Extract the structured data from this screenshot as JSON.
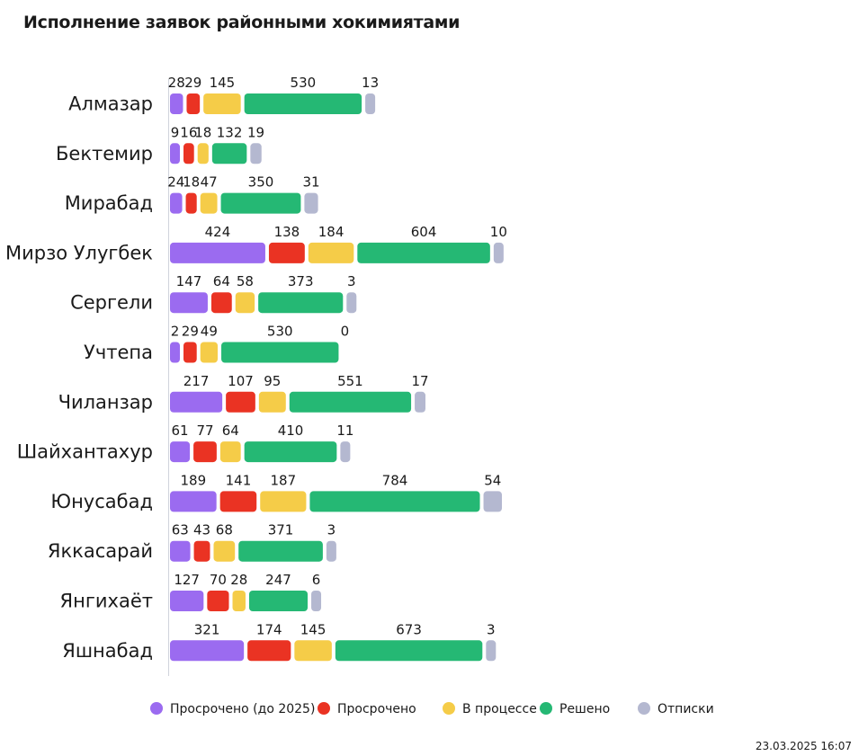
{
  "chart_data": {
    "type": "bar",
    "orientation": "horizontal-stacked",
    "title": "Исполнение заявок районными хокимиятами",
    "categories": [
      "Алмазар",
      "Бектемир",
      "Мирабад",
      "Мирзо Улугбек",
      "Сергели",
      "Учтепа",
      "Чиланзар",
      "Шайхантахур",
      "Юнусабад",
      "Яккасарай",
      "Янгихаёт",
      "Яшнабад"
    ],
    "series": [
      {
        "name": "Просрочено (до 2025)",
        "color": "#9b6bf0",
        "values": [
          28,
          9,
          24,
          424,
          147,
          2,
          217,
          61,
          189,
          63,
          127,
          321
        ]
      },
      {
        "name": "Просрочено",
        "color": "#ea3323",
        "values": [
          29,
          16,
          18,
          138,
          64,
          29,
          107,
          77,
          141,
          43,
          70,
          174
        ]
      },
      {
        "name": "В процессе",
        "color": "#f5cc48",
        "values": [
          145,
          18,
          47,
          184,
          58,
          49,
          95,
          64,
          187,
          68,
          28,
          145
        ]
      },
      {
        "name": "Решено",
        "color": "#25b874",
        "values": [
          530,
          132,
          350,
          604,
          373,
          530,
          551,
          410,
          784,
          371,
          247,
          673
        ]
      },
      {
        "name": "Отписки",
        "color": "#b4b8d0",
        "values": [
          13,
          19,
          31,
          10,
          3,
          0,
          17,
          11,
          54,
          3,
          6,
          3
        ]
      }
    ],
    "legend_position": "bottom",
    "grid": false
  },
  "timestamp": "23.03.2025 16:07"
}
